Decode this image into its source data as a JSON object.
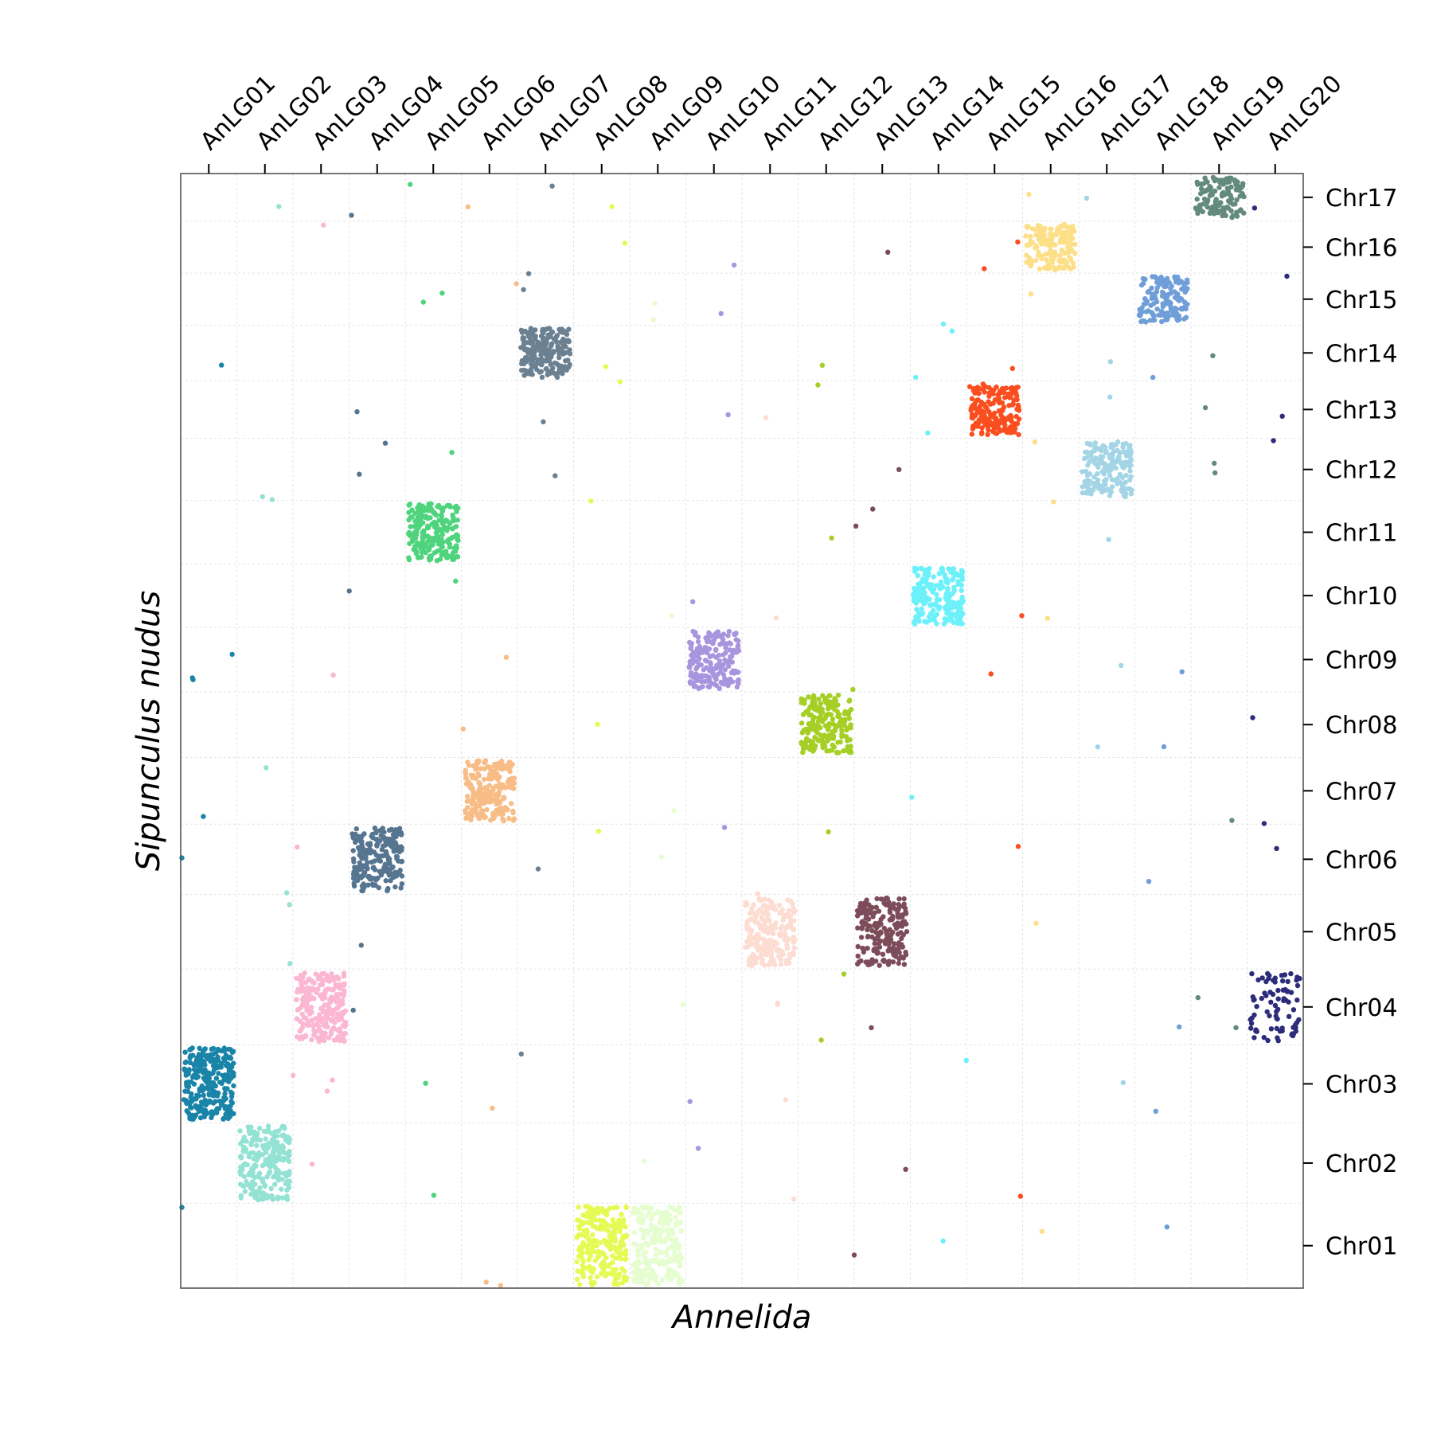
{
  "chart_data": {
    "type": "scatter",
    "title": "",
    "xlabel": "Annelida",
    "ylabel": "Sipunculus nudus",
    "x_categories": [
      "AnLG01",
      "AnLG02",
      "AnLG03",
      "AnLG04",
      "AnLG05",
      "AnLG06",
      "AnLG07",
      "AnLG08",
      "AnLG09",
      "AnLG10",
      "AnLG11",
      "AnLG12",
      "AnLG13",
      "AnLG14",
      "AnLG15",
      "AnLG16",
      "AnLG17",
      "AnLG18",
      "AnLG19",
      "AnLG20"
    ],
    "y_categories": [
      "Chr01",
      "Chr02",
      "Chr03",
      "Chr04",
      "Chr05",
      "Chr06",
      "Chr07",
      "Chr08",
      "Chr09",
      "Chr10",
      "Chr11",
      "Chr12",
      "Chr13",
      "Chr14",
      "Chr15",
      "Chr16",
      "Chr17"
    ],
    "x_axis_position": "top",
    "y_axis_position": "right",
    "grid": true,
    "legend": "none",
    "clusters": [
      {
        "x_category": "AnLG01",
        "y_category": "Chr03",
        "color": "#1984a8",
        "points": 260
      },
      {
        "x_category": "AnLG02",
        "y_category": "Chr02",
        "color": "#94e2d4",
        "points": 240
      },
      {
        "x_category": "AnLG03",
        "y_category": "Chr04",
        "color": "#fbb6d1",
        "points": 240
      },
      {
        "x_category": "AnLG04",
        "y_category": "Chr06",
        "color": "#567590",
        "points": 220
      },
      {
        "x_category": "AnLG05",
        "y_category": "Chr11",
        "color": "#4fd47d",
        "points": 220
      },
      {
        "x_category": "AnLG06",
        "y_category": "Chr07",
        "color": "#f8bd86",
        "points": 220
      },
      {
        "x_category": "AnLG07",
        "y_category": "Chr14",
        "color": "#6b8192",
        "points": 210
      },
      {
        "x_category": "AnLG08",
        "y_category": "Chr01",
        "color": "#e6fa56",
        "points": 230
      },
      {
        "x_category": "AnLG09",
        "y_category": "Chr01",
        "color": "#e6fdd0",
        "points": 230
      },
      {
        "x_category": "AnLG10",
        "y_category": "Chr09",
        "color": "#a895de",
        "points": 200
      },
      {
        "x_category": "AnLG11",
        "y_category": "Chr05",
        "color": "#fddcd2",
        "points": 220
      },
      {
        "x_category": "AnLG12",
        "y_category": "Chr08",
        "color": "#a5cf25",
        "points": 200
      },
      {
        "x_category": "AnLG13",
        "y_category": "Chr05",
        "color": "#7d4c5a",
        "points": 200
      },
      {
        "x_category": "AnLG14",
        "y_category": "Chr10",
        "color": "#6cf1fb",
        "points": 190
      },
      {
        "x_category": "AnLG15",
        "y_category": "Chr13",
        "color": "#fa4e1e",
        "points": 180
      },
      {
        "x_category": "AnLG16",
        "y_category": "Chr16",
        "color": "#fcdf87",
        "points": 160
      },
      {
        "x_category": "AnLG17",
        "y_category": "Chr12",
        "color": "#a3d5e6",
        "points": 170
      },
      {
        "x_category": "AnLG18",
        "y_category": "Chr15",
        "color": "#6f9ed8",
        "points": 150
      },
      {
        "x_category": "AnLG19",
        "y_category": "Chr17",
        "color": "#638a7d",
        "points": 120
      },
      {
        "x_category": "AnLG20",
        "y_category": "Chr04",
        "color": "#2c2c7a",
        "points": 80
      }
    ]
  }
}
